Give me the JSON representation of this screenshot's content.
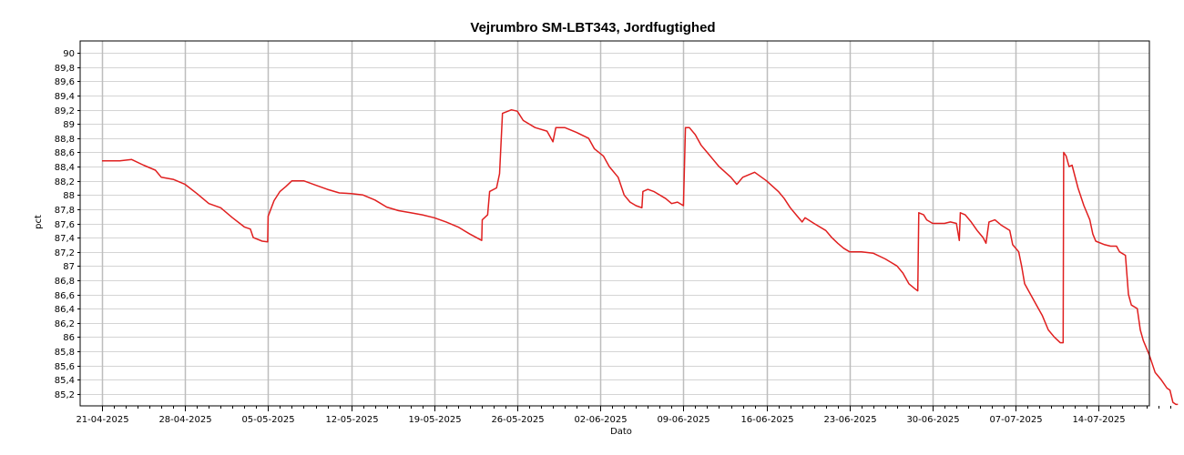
{
  "chart_data": {
    "type": "line",
    "title": "Vejrumbro SM-LBT343, Jordfugtighed",
    "xlabel": "Dato",
    "ylabel": "pct",
    "x_range": [
      "2025-04-21",
      "2025-07-20"
    ],
    "ylim": [
      85.03,
      90.17
    ],
    "y_ticks": [
      "85,2",
      "85,4",
      "85,6",
      "85,8",
      "86",
      "86,2",
      "86,4",
      "86,6",
      "86,8",
      "87",
      "87,2",
      "87,4",
      "87,6",
      "87,8",
      "88",
      "88,2",
      "88,4",
      "88,6",
      "88,8",
      "89",
      "89,2",
      "89,4",
      "89,6",
      "89,8",
      "90"
    ],
    "y_tick_values": [
      85.2,
      85.4,
      85.6,
      85.8,
      86,
      86.2,
      86.4,
      86.6,
      86.8,
      87,
      87.2,
      87.4,
      87.6,
      87.8,
      88,
      88.2,
      88.4,
      88.6,
      88.8,
      89,
      89.2,
      89.4,
      89.6,
      89.8,
      90
    ],
    "x_ticks": [
      "21-04-2025",
      "28-04-2025",
      "05-05-2025",
      "12-05-2025",
      "19-05-2025",
      "26-05-2025",
      "02-06-2025",
      "09-06-2025",
      "16-06-2025",
      "23-06-2025",
      "30-06-2025",
      "07-07-2025",
      "14-07-2025"
    ],
    "x_tick_dates": [
      "2025-04-21",
      "2025-04-28",
      "2025-05-05",
      "2025-05-12",
      "2025-05-19",
      "2025-05-26",
      "2025-06-02",
      "2025-06-09",
      "2025-06-16",
      "2025-06-23",
      "2025-06-30",
      "2025-07-07",
      "2025-07-14"
    ],
    "grid": true,
    "series": [
      {
        "color": "#e01f1f",
        "points": [
          [
            "2025-04-21 00:00",
            88.48
          ],
          [
            "2025-04-22 12:00",
            88.48
          ],
          [
            "2025-04-23 12:00",
            88.5
          ],
          [
            "2025-04-24 12:00",
            88.42
          ],
          [
            "2025-04-25 12:00",
            88.35
          ],
          [
            "2025-04-26 00:00",
            88.25
          ],
          [
            "2025-04-27 00:00",
            88.22
          ],
          [
            "2025-04-28 00:00",
            88.15
          ],
          [
            "2025-04-29 00:00",
            88.02
          ],
          [
            "2025-04-30 00:00",
            87.88
          ],
          [
            "2025-05-01 00:00",
            87.82
          ],
          [
            "2025-05-02 00:00",
            87.68
          ],
          [
            "2025-05-03 00:00",
            87.55
          ],
          [
            "2025-05-03 12:00",
            87.52
          ],
          [
            "2025-05-03 18:00",
            87.4
          ],
          [
            "2025-05-04 12:00",
            87.35
          ],
          [
            "2025-05-04 23:00",
            87.34
          ],
          [
            "2025-05-05 00:00",
            87.7
          ],
          [
            "2025-05-05 12:00",
            87.92
          ],
          [
            "2025-05-06 00:00",
            88.05
          ],
          [
            "2025-05-06 12:00",
            88.12
          ],
          [
            "2025-05-07 00:00",
            88.2
          ],
          [
            "2025-05-08 00:00",
            88.2
          ],
          [
            "2025-05-09 00:00",
            88.14
          ],
          [
            "2025-05-10 00:00",
            88.08
          ],
          [
            "2025-05-11 00:00",
            88.03
          ],
          [
            "2025-05-12 00:00",
            88.02
          ],
          [
            "2025-05-13 00:00",
            88.0
          ],
          [
            "2025-05-14 00:00",
            87.93
          ],
          [
            "2025-05-15 00:00",
            87.83
          ],
          [
            "2025-05-16 00:00",
            87.78
          ],
          [
            "2025-05-17 00:00",
            87.75
          ],
          [
            "2025-05-18 00:00",
            87.72
          ],
          [
            "2025-05-19 00:00",
            87.68
          ],
          [
            "2025-05-20 00:00",
            87.62
          ],
          [
            "2025-05-21 00:00",
            87.55
          ],
          [
            "2025-05-22 00:00",
            87.45
          ],
          [
            "2025-05-23 00:00",
            87.36
          ],
          [
            "2025-05-23 01:00",
            87.65
          ],
          [
            "2025-05-23 12:00",
            87.72
          ],
          [
            "2025-05-23 16:00",
            88.05
          ],
          [
            "2025-05-24 06:00",
            88.1
          ],
          [
            "2025-05-24 12:00",
            88.3
          ],
          [
            "2025-05-24 18:00",
            89.15
          ],
          [
            "2025-05-25 12:00",
            89.2
          ],
          [
            "2025-05-26 00:00",
            89.18
          ],
          [
            "2025-05-26 12:00",
            89.05
          ],
          [
            "2025-05-27 12:00",
            88.95
          ],
          [
            "2025-05-28 12:00",
            88.9
          ],
          [
            "2025-05-29 00:00",
            88.75
          ],
          [
            "2025-05-29 06:00",
            88.95
          ],
          [
            "2025-05-30 00:00",
            88.95
          ],
          [
            "2025-05-31 00:00",
            88.88
          ],
          [
            "2025-06-01 00:00",
            88.8
          ],
          [
            "2025-06-01 12:00",
            88.65
          ],
          [
            "2025-06-02 06:00",
            88.55
          ],
          [
            "2025-06-02 18:00",
            88.4
          ],
          [
            "2025-06-03 12:00",
            88.25
          ],
          [
            "2025-06-04 00:00",
            88.0
          ],
          [
            "2025-06-04 12:00",
            87.9
          ],
          [
            "2025-06-05 00:00",
            87.85
          ],
          [
            "2025-06-05 12:00",
            87.82
          ],
          [
            "2025-06-05 14:00",
            88.05
          ],
          [
            "2025-06-06 00:00",
            88.08
          ],
          [
            "2025-06-06 12:00",
            88.05
          ],
          [
            "2025-06-07 12:00",
            87.95
          ],
          [
            "2025-06-08 00:00",
            87.88
          ],
          [
            "2025-06-08 12:00",
            87.9
          ],
          [
            "2025-06-09 00:00",
            87.85
          ],
          [
            "2025-06-09 04:00",
            88.95
          ],
          [
            "2025-06-09 12:00",
            88.95
          ],
          [
            "2025-06-10 00:00",
            88.85
          ],
          [
            "2025-06-10 12:00",
            88.7
          ],
          [
            "2025-06-11 00:00",
            88.6
          ],
          [
            "2025-06-11 12:00",
            88.5
          ],
          [
            "2025-06-12 00:00",
            88.4
          ],
          [
            "2025-06-13 00:00",
            88.25
          ],
          [
            "2025-06-13 12:00",
            88.15
          ],
          [
            "2025-06-14 00:00",
            88.25
          ],
          [
            "2025-06-15 00:00",
            88.32
          ],
          [
            "2025-06-16 00:00",
            88.2
          ],
          [
            "2025-06-17 00:00",
            88.05
          ],
          [
            "2025-06-17 12:00",
            87.95
          ],
          [
            "2025-06-18 00:00",
            87.82
          ],
          [
            "2025-06-18 12:00",
            87.72
          ],
          [
            "2025-06-19 00:00",
            87.62
          ],
          [
            "2025-06-19 06:00",
            87.68
          ],
          [
            "2025-06-20 00:00",
            87.6
          ],
          [
            "2025-06-21 00:00",
            87.5
          ],
          [
            "2025-06-21 12:00",
            87.4
          ],
          [
            "2025-06-22 00:00",
            87.32
          ],
          [
            "2025-06-22 12:00",
            87.25
          ],
          [
            "2025-06-23 00:00",
            87.2
          ],
          [
            "2025-06-24 00:00",
            87.2
          ],
          [
            "2025-06-25 00:00",
            87.18
          ],
          [
            "2025-06-26 00:00",
            87.1
          ],
          [
            "2025-06-26 12:00",
            87.05
          ],
          [
            "2025-06-27 00:00",
            87.0
          ],
          [
            "2025-06-27 12:00",
            86.9
          ],
          [
            "2025-06-28 00:00",
            86.75
          ],
          [
            "2025-06-28 12:00",
            86.68
          ],
          [
            "2025-06-28 18:00",
            86.65
          ],
          [
            "2025-06-28 20:00",
            87.75
          ],
          [
            "2025-06-29 06:00",
            87.72
          ],
          [
            "2025-06-29 12:00",
            87.65
          ],
          [
            "2025-06-30 00:00",
            87.6
          ],
          [
            "2025-07-01 00:00",
            87.6
          ],
          [
            "2025-07-01 12:00",
            87.62
          ],
          [
            "2025-07-02 00:00",
            87.6
          ],
          [
            "2025-07-02 06:00",
            87.36
          ],
          [
            "2025-07-02 08:00",
            87.75
          ],
          [
            "2025-07-02 18:00",
            87.72
          ],
          [
            "2025-07-03 06:00",
            87.62
          ],
          [
            "2025-07-03 18:00",
            87.5
          ],
          [
            "2025-07-04 06:00",
            87.4
          ],
          [
            "2025-07-04 12:00",
            87.32
          ],
          [
            "2025-07-04 18:00",
            87.62
          ],
          [
            "2025-07-05 06:00",
            87.65
          ],
          [
            "2025-07-05 18:00",
            87.58
          ],
          [
            "2025-07-06 12:00",
            87.5
          ],
          [
            "2025-07-06 18:00",
            87.3
          ],
          [
            "2025-07-07 06:00",
            87.2
          ],
          [
            "2025-07-07 12:00",
            87.0
          ],
          [
            "2025-07-07 18:00",
            86.75
          ],
          [
            "2025-07-08 06:00",
            86.6
          ],
          [
            "2025-07-08 18:00",
            86.45
          ],
          [
            "2025-07-09 06:00",
            86.3
          ],
          [
            "2025-07-09 18:00",
            86.1
          ],
          [
            "2025-07-10 06:00",
            86.0
          ],
          [
            "2025-07-10 18:00",
            85.92
          ],
          [
            "2025-07-11 00:00",
            85.92
          ],
          [
            "2025-07-11 01:00",
            88.6
          ],
          [
            "2025-07-11 06:00",
            88.55
          ],
          [
            "2025-07-11 12:00",
            88.4
          ],
          [
            "2025-07-11 18:00",
            88.42
          ],
          [
            "2025-07-12 06:00",
            88.1
          ],
          [
            "2025-07-12 18:00",
            87.85
          ],
          [
            "2025-07-13 06:00",
            87.65
          ],
          [
            "2025-07-13 12:00",
            87.45
          ],
          [
            "2025-07-13 18:00",
            87.35
          ],
          [
            "2025-07-14 12:00",
            87.3
          ],
          [
            "2025-07-15 00:00",
            87.28
          ],
          [
            "2025-07-15 12:00",
            87.28
          ],
          [
            "2025-07-15 18:00",
            87.2
          ],
          [
            "2025-07-16 06:00",
            87.15
          ],
          [
            "2025-07-16 12:00",
            86.6
          ],
          [
            "2025-07-16 18:00",
            86.45
          ],
          [
            "2025-07-17 06:00",
            86.4
          ],
          [
            "2025-07-17 12:00",
            86.1
          ],
          [
            "2025-07-17 18:00",
            85.95
          ],
          [
            "2025-07-18 06:00",
            85.75
          ],
          [
            "2025-07-18 18:00",
            85.5
          ],
          [
            "2025-07-19 06:00",
            85.4
          ],
          [
            "2025-07-19 18:00",
            85.28
          ],
          [
            "2025-07-20 00:00",
            85.25
          ],
          [
            "2025-07-20 06:00",
            85.08
          ],
          [
            "2025-07-20 12:00",
            85.05
          ],
          [
            "2025-07-20 16:00",
            85.05
          ]
        ]
      }
    ]
  }
}
